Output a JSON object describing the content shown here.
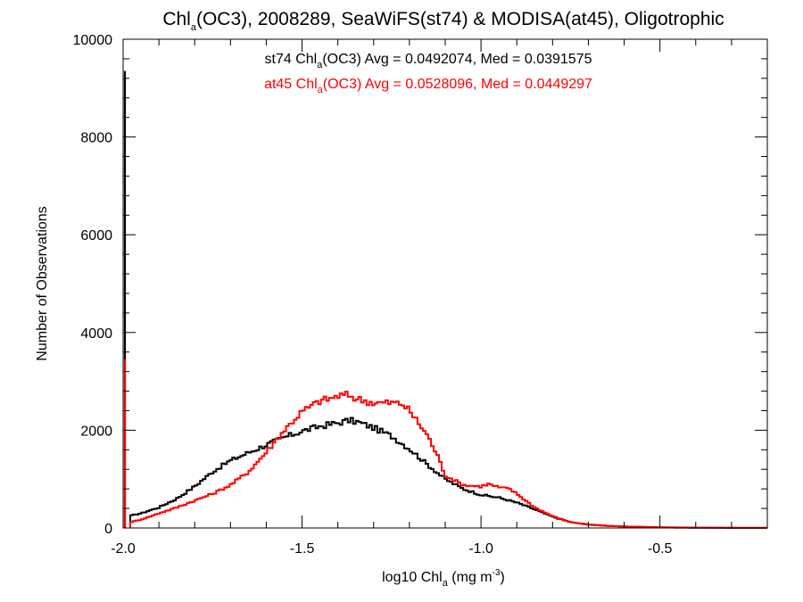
{
  "chart_data": {
    "type": "line",
    "step": true,
    "title": {
      "pre": "Chl",
      "sub": "a",
      "post": "(OC3), 2008289, SeaWiFS(st74) & MODISA(at45), Oligotrophic"
    },
    "xlabel": {
      "pre": "log10 Chl",
      "sub": "a",
      "mid": " (mg m",
      "sup": "-3",
      "post": ")"
    },
    "ylabel": "Number of Observations",
    "xlim": [
      -2.0,
      -0.2
    ],
    "ylim": [
      0,
      10000
    ],
    "xticks": [
      -2.0,
      -1.5,
      -1.0,
      -0.5
    ],
    "xtick_labels": [
      "-2.0",
      "-1.5",
      "-1.0",
      "-0.5"
    ],
    "yticks": [
      0,
      2000,
      4000,
      6000,
      8000,
      10000
    ],
    "ytick_labels": [
      "0",
      "2000",
      "4000",
      "6000",
      "8000",
      "10000"
    ],
    "grid": false,
    "annotations": [
      {
        "pre": "st74 Chl",
        "sub": "a",
        "post": "(OC3) Avg = 0.0492074, Med = 0.0391575",
        "color": "#000000"
      },
      {
        "pre": "at45 Chl",
        "sub": "a",
        "post": "(OC3) Avg = 0.0528096, Med = 0.0449297",
        "color": "#ff0000"
      }
    ],
    "series": [
      {
        "color": "#000000",
        "spike": {
          "x": -1.995,
          "value": 9350
        },
        "x": [
          -1.98,
          -1.95,
          -1.9,
          -1.85,
          -1.8,
          -1.75,
          -1.7,
          -1.65,
          -1.6,
          -1.55,
          -1.5,
          -1.45,
          -1.4,
          -1.37,
          -1.35,
          -1.3,
          -1.25,
          -1.2,
          -1.15,
          -1.1,
          -1.05,
          -1.0,
          -0.95,
          -0.9,
          -0.85,
          -0.8,
          -0.75,
          -0.7,
          -0.65,
          -0.6,
          -0.55,
          -0.5,
          -0.45,
          -0.4,
          -0.3,
          -0.2
        ],
        "values": [
          250,
          300,
          420,
          600,
          850,
          1150,
          1380,
          1540,
          1700,
          1850,
          1980,
          2080,
          2150,
          2200,
          2180,
          2050,
          1880,
          1620,
          1300,
          1000,
          800,
          680,
          620,
          520,
          380,
          230,
          120,
          70,
          45,
          30,
          20,
          12,
          8,
          5,
          2,
          1
        ]
      },
      {
        "color": "#ff0000",
        "spike": {
          "x": -1.995,
          "value": 3450
        },
        "x": [
          -1.98,
          -1.95,
          -1.9,
          -1.85,
          -1.8,
          -1.75,
          -1.7,
          -1.65,
          -1.6,
          -1.55,
          -1.5,
          -1.45,
          -1.42,
          -1.4,
          -1.37,
          -1.35,
          -1.3,
          -1.25,
          -1.22,
          -1.2,
          -1.15,
          -1.12,
          -1.1,
          -1.05,
          -1.0,
          -0.98,
          -0.95,
          -0.92,
          -0.9,
          -0.85,
          -0.8,
          -0.75,
          -0.7,
          -0.65,
          -0.6,
          -0.5,
          -0.4,
          -0.3,
          -0.2
        ],
        "values": [
          120,
          170,
          300,
          420,
          560,
          700,
          880,
          1150,
          1550,
          2000,
          2380,
          2600,
          2650,
          2700,
          2720,
          2650,
          2560,
          2560,
          2540,
          2400,
          1900,
          1450,
          1080,
          880,
          850,
          900,
          830,
          800,
          700,
          420,
          240,
          120,
          70,
          45,
          30,
          15,
          8,
          3,
          1
        ]
      }
    ]
  }
}
